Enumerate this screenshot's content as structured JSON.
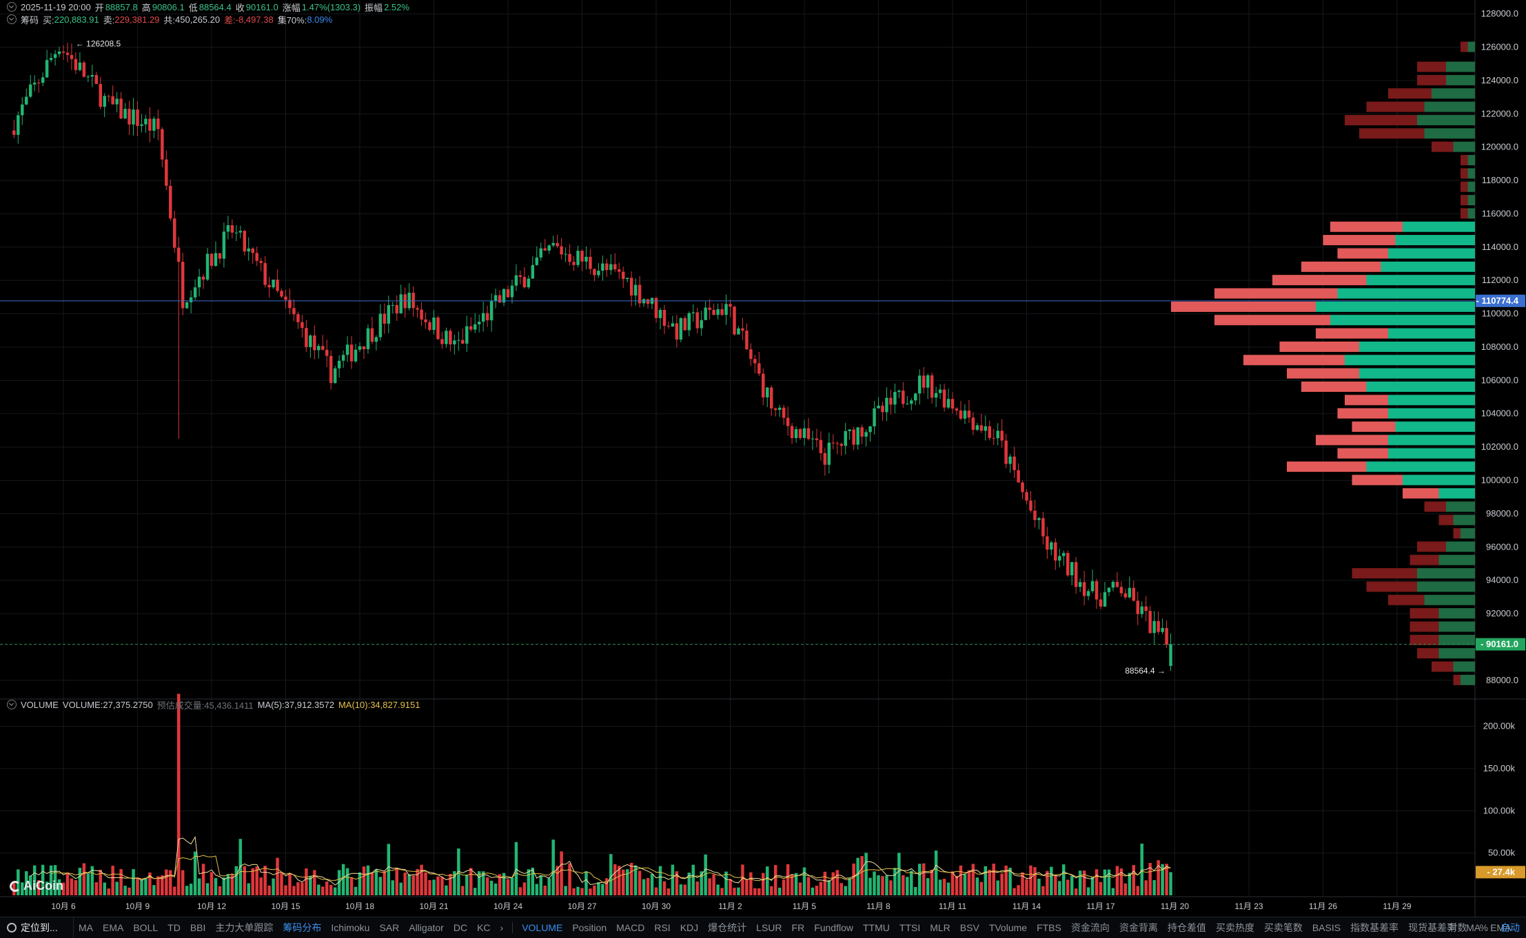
{
  "header": {
    "row1": {
      "datetime": "2025-11-19 20:00",
      "open_label": "开",
      "open": "88857.8",
      "high_label": "高",
      "high": "90806.1",
      "low_label": "低",
      "low": "88564.4",
      "close_label": "收",
      "close": "90161.0",
      "change_label": "涨幅",
      "change": "1.47%(1303.3)",
      "amp_label": "振幅",
      "amp": "2.52%"
    },
    "row2": {
      "name": "筹码",
      "buy_label": "买:",
      "buy": "220,883.91",
      "sell_label": "卖:",
      "sell": "229,381.29",
      "total_label": "共:",
      "total": "450,265.20",
      "diff_label": "差:",
      "diff": "-8,497.38",
      "conc_label": "集70%:",
      "conc": "8.09%"
    }
  },
  "volume_header": {
    "name": "VOLUME",
    "volume": "VOLUME:27,375.2750",
    "estimate": "预估成交量:45,436.1411",
    "ma5": "MA(5):37,912.3572",
    "ma10": "MA(10):34,827.9151"
  },
  "price_axis": {
    "min": 87000,
    "max": 128500,
    "ticks": [
      {
        "v": 128000,
        "t": "128000.0"
      },
      {
        "v": 126000,
        "t": "126000.0"
      },
      {
        "v": 124000,
        "t": "124000.0"
      },
      {
        "v": 122000,
        "t": "122000.0"
      },
      {
        "v": 120000,
        "t": "120000.0"
      },
      {
        "v": 118000,
        "t": "118000.0"
      },
      {
        "v": 116000,
        "t": "116000.0"
      },
      {
        "v": 114000,
        "t": "114000.0"
      },
      {
        "v": 112000,
        "t": "112000.0"
      },
      {
        "v": 110000,
        "t": "110000.0"
      },
      {
        "v": 108000,
        "t": "108000.0"
      },
      {
        "v": 106000,
        "t": "106000.0"
      },
      {
        "v": 104000,
        "t": "104000.0"
      },
      {
        "v": 102000,
        "t": "102000.0"
      },
      {
        "v": 100000,
        "t": "100000.0"
      },
      {
        "v": 98000,
        "t": "98000.0"
      },
      {
        "v": 96000,
        "t": "96000.0"
      },
      {
        "v": 94000,
        "t": "94000.0"
      },
      {
        "v": 92000,
        "t": "92000.0"
      },
      {
        "v": 88000,
        "t": "88000.0"
      }
    ],
    "current_price": {
      "v": 90161.0,
      "t": "90161.0"
    },
    "crosshair_price": {
      "v": 110774.4,
      "t": "110774.4"
    },
    "high_marker": {
      "v": 126208.5,
      "t": "126208.5"
    },
    "low_marker": {
      "v": 88564.4,
      "t": "88564.4"
    }
  },
  "volume_axis": {
    "max": 220000,
    "ticks": [
      {
        "v": 200000,
        "t": "200.00k"
      },
      {
        "v": 150000,
        "t": "150.00k"
      },
      {
        "v": 100000,
        "t": "100.00k"
      },
      {
        "v": 50000,
        "t": "50.00k"
      }
    ],
    "current": {
      "v": 27400,
      "t": "27.4k"
    }
  },
  "time_axis": {
    "labels": [
      "10月 6",
      "10月 9",
      "10月 12",
      "10月 15",
      "10月 18",
      "10月 21",
      "10月 24",
      "10月 27",
      "10月 30",
      "11月 2",
      "11月 5",
      "11月 8",
      "11月 11",
      "11月 14",
      "11月 17",
      "11月 20",
      "11月 23",
      "11月 26",
      "11月 29"
    ]
  },
  "chart_data": {
    "type": "candlestick",
    "timeframe_hint": "4h candles, 2025-10-04 to 2025-11-19 20:00",
    "key_points": [
      {
        "date": "10月 4",
        "price": 121000
      },
      {
        "date": "10月 6",
        "price": 126208.5
      },
      {
        "date": "10月 8",
        "price": 122500
      },
      {
        "date": "10月 10",
        "price": 121000
      },
      {
        "date": "10月 11",
        "price": 111000
      },
      {
        "date": "10月 13",
        "price": 115000
      },
      {
        "date": "10月 17",
        "price": 106500
      },
      {
        "date": "10月 20",
        "price": 111000
      },
      {
        "date": "10月 22",
        "price": 108000
      },
      {
        "date": "10月 26",
        "price": 114000
      },
      {
        "date": "10月 29",
        "price": 112000
      },
      {
        "date": "10月 31",
        "price": 109000
      },
      {
        "date": "11月 2",
        "price": 110500
      },
      {
        "date": "11月 4",
        "price": 104000
      },
      {
        "date": "11月 6",
        "price": 101500
      },
      {
        "date": "11月 10",
        "price": 106000
      },
      {
        "date": "11月 13",
        "price": 102500
      },
      {
        "date": "11月 15",
        "price": 96000
      },
      {
        "date": "11月 17",
        "price": 93000
      },
      {
        "date": "11月 18",
        "price": 93500
      },
      {
        "date": "11月 19",
        "price": 90161
      }
    ],
    "volume_profile": [
      {
        "p": 126000,
        "buy": 1,
        "sell": 1
      },
      {
        "p": 124800,
        "buy": 4,
        "sell": 4
      },
      {
        "p": 124000,
        "buy": 4,
        "sell": 4
      },
      {
        "p": 123200,
        "buy": 6,
        "sell": 6
      },
      {
        "p": 122400,
        "buy": 7,
        "sell": 8
      },
      {
        "p": 121600,
        "buy": 8,
        "sell": 10
      },
      {
        "p": 120800,
        "buy": 7,
        "sell": 9
      },
      {
        "p": 120000,
        "buy": 3,
        "sell": 3
      },
      {
        "p": 119200,
        "buy": 1,
        "sell": 1
      },
      {
        "p": 118400,
        "buy": 1,
        "sell": 1
      },
      {
        "p": 117600,
        "buy": 1,
        "sell": 1
      },
      {
        "p": 116800,
        "buy": 1,
        "sell": 1
      },
      {
        "p": 116000,
        "buy": 1,
        "sell": 1
      },
      {
        "p": 115200,
        "buy": 10,
        "sell": 10
      },
      {
        "p": 114400,
        "buy": 11,
        "sell": 10
      },
      {
        "p": 113600,
        "buy": 12,
        "sell": 7
      },
      {
        "p": 112800,
        "buy": 13,
        "sell": 11
      },
      {
        "p": 112000,
        "buy": 15,
        "sell": 13
      },
      {
        "p": 111200,
        "buy": 19,
        "sell": 17
      },
      {
        "p": 110400,
        "buy": 22,
        "sell": 20
      },
      {
        "p": 109600,
        "buy": 20,
        "sell": 16
      },
      {
        "p": 108800,
        "buy": 12,
        "sell": 10
      },
      {
        "p": 108000,
        "buy": 16,
        "sell": 11
      },
      {
        "p": 107200,
        "buy": 18,
        "sell": 14
      },
      {
        "p": 106400,
        "buy": 16,
        "sell": 10
      },
      {
        "p": 105600,
        "buy": 15,
        "sell": 9
      },
      {
        "p": 104800,
        "buy": 12,
        "sell": 6
      },
      {
        "p": 104000,
        "buy": 12,
        "sell": 7
      },
      {
        "p": 103200,
        "buy": 11,
        "sell": 6
      },
      {
        "p": 102400,
        "buy": 12,
        "sell": 10
      },
      {
        "p": 101600,
        "buy": 12,
        "sell": 7
      },
      {
        "p": 100800,
        "buy": 15,
        "sell": 11
      },
      {
        "p": 100000,
        "buy": 10,
        "sell": 7
      },
      {
        "p": 99200,
        "buy": 5,
        "sell": 5
      },
      {
        "p": 98400,
        "buy": 4,
        "sell": 3
      },
      {
        "p": 97600,
        "buy": 3,
        "sell": 2
      },
      {
        "p": 96800,
        "buy": 2,
        "sell": 1
      },
      {
        "p": 96000,
        "buy": 4,
        "sell": 4
      },
      {
        "p": 95200,
        "buy": 5,
        "sell": 4
      },
      {
        "p": 94400,
        "buy": 8,
        "sell": 9
      },
      {
        "p": 93600,
        "buy": 8,
        "sell": 7
      },
      {
        "p": 92800,
        "buy": 7,
        "sell": 5
      },
      {
        "p": 92000,
        "buy": 5,
        "sell": 4
      },
      {
        "p": 91200,
        "buy": 5,
        "sell": 4
      },
      {
        "p": 90400,
        "buy": 5,
        "sell": 4
      },
      {
        "p": 89600,
        "buy": 5,
        "sell": 3
      },
      {
        "p": 88800,
        "buy": 3,
        "sell": 3
      },
      {
        "p": 88000,
        "buy": 2,
        "sell": 1
      }
    ]
  },
  "colors": {
    "up": "#22b573",
    "down": "#e0373b",
    "profile_buy": "#12b88a",
    "profile_sell": "#e35a5a",
    "profile_buy_dim": "#1f6b43",
    "profile_sell_dim": "#7a1a1a",
    "crosshair": "#3b6fd0",
    "ma5": "#f0e0a0",
    "ma10": "#e6c14a"
  },
  "toolbar": {
    "locate": "定位到...",
    "main_indicators": [
      "MA",
      "EMA",
      "BOLL",
      "TD",
      "BBI",
      "主力大单跟踪",
      "筹码分布",
      "Ichimoku",
      "SAR",
      "Alligator",
      "DC",
      "KC"
    ],
    "active_main": "筹码分布",
    "more": "›",
    "sub_indicators": [
      "VOLUME",
      "Position",
      "MACD",
      "RSI",
      "KDJ",
      "爆仓统计",
      "LSUR",
      "FR",
      "Fundflow",
      "TTMU",
      "TTSI",
      "MLR",
      "BSV",
      "TVolume",
      "FTBS",
      "资金流向",
      "资金背离",
      "持仓差值",
      "买卖热度",
      "买卖笔数",
      "BASIS",
      "指数基差率",
      "现货基差率",
      "MA",
      "EMA"
    ],
    "active_sub": "VOLUME",
    "right": [
      "对数",
      "%",
      "自动"
    ],
    "active_right": "自动"
  },
  "logo_text": "AiCoin"
}
